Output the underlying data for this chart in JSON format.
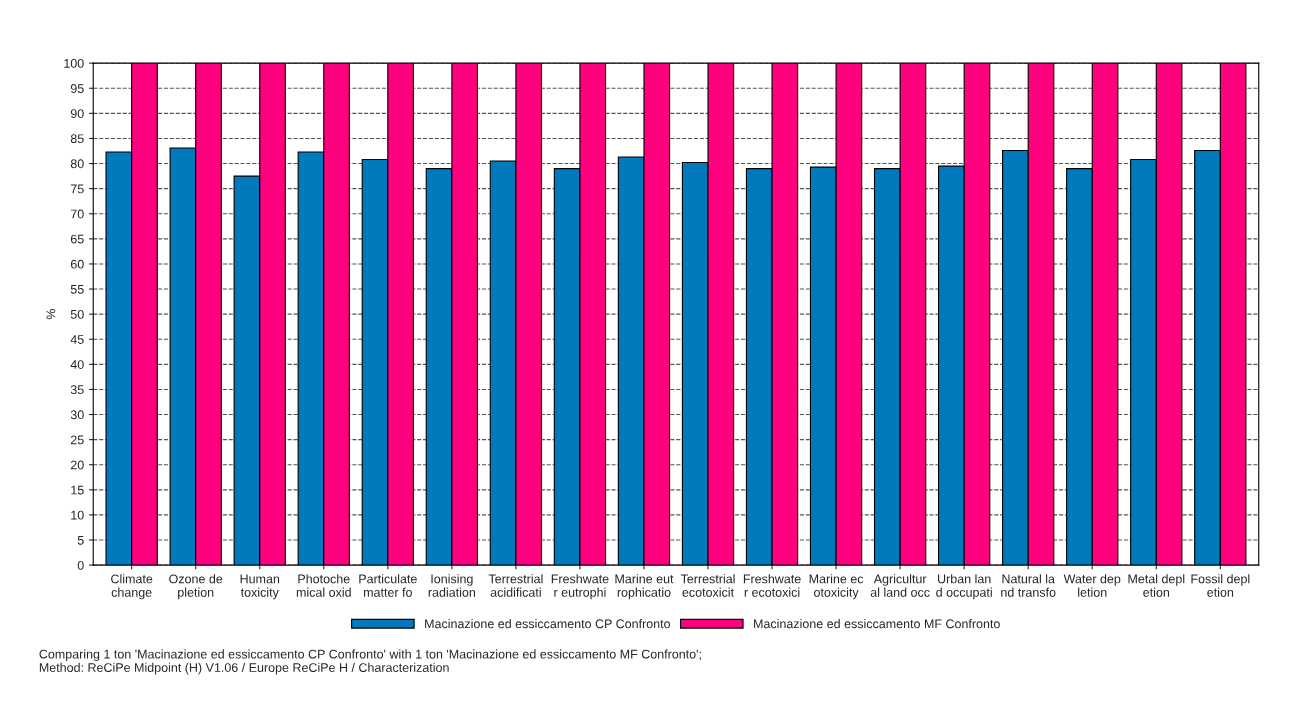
{
  "chart_data": {
    "type": "bar",
    "ylabel": "%",
    "categories": [
      "Climate\nchange",
      "Ozone de\npletion",
      "Human\ntoxicity",
      "Photoche\nmical oxid",
      "Particulate\nmatter fo",
      "Ionising\nradiation",
      "Terrestrial\nacidificati",
      "Freshwate\nr eutrophi",
      "Marine eut\nrophicatio",
      "Terrestrial\necotoxicit",
      "Freshwate\nr ecotoxici",
      "Marine ec\notoxicity",
      "Agricultur\nal land occ",
      "Urban lan\nd occupati",
      "Natural la\nnd transfo",
      "Water dep\nletion",
      "Metal depl\netion",
      "Fossil depl\netion"
    ],
    "series": [
      {
        "name": "Macinazione ed essiccamento CP Confronto",
        "color": "#0079bd",
        "values": [
          82.3,
          83.1,
          77.5,
          82.3,
          80.8,
          79.0,
          80.5,
          79.0,
          81.3,
          80.2,
          79.0,
          79.3,
          79.0,
          79.5,
          82.6,
          79.0,
          80.8,
          82.6
        ]
      },
      {
        "name": "Macinazione ed essiccamento MF Confronto",
        "color": "#ff007f",
        "values": [
          100,
          100,
          100,
          100,
          100,
          100,
          100,
          100,
          100,
          100,
          100,
          100,
          100,
          100,
          100,
          100,
          100,
          100
        ]
      }
    ],
    "ylim": [
      0,
      100
    ],
    "yticks": [
      0,
      5,
      10,
      15,
      20,
      25,
      30,
      35,
      40,
      45,
      50,
      55,
      60,
      65,
      70,
      75,
      80,
      85,
      90,
      95,
      100
    ],
    "grid": "y",
    "legend": "bottom",
    "annotations": [
      "Comparing 1 ton 'Macinazione ed essiccamento CP Confronto' with 1 ton 'Macinazione ed essiccamento MF Confronto';\nMethod: ReCiPe Midpoint (H) V1.06 / Europe ReCiPe H / Characterization"
    ]
  }
}
